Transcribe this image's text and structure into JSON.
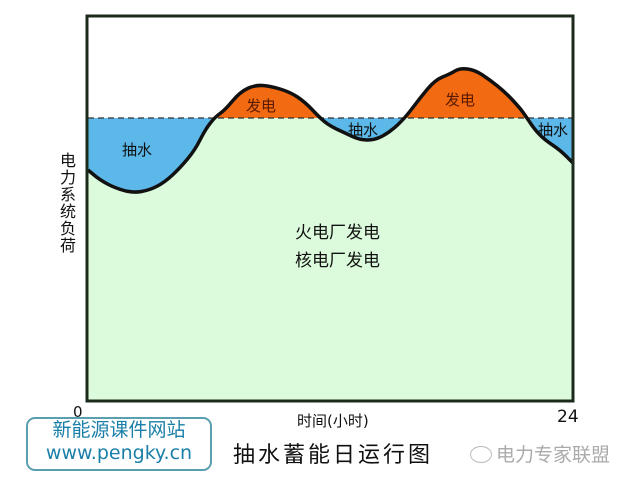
{
  "diagram": {
    "title": "抽水蓄能日运行图",
    "y_axis_label": "电力系统负荷",
    "x_axis_label": "时间(小时)",
    "x_start": "0",
    "x_end": "24",
    "regions": {
      "pump_left": "抽水",
      "pump_mid": "抽水",
      "pump_right": "抽水",
      "gen_1": "发电",
      "gen_2": "发电",
      "base_line1": "火电厂发电",
      "base_line2": "核电厂发电"
    },
    "colors": {
      "pumping": "#5bb8e8",
      "generation": "#f26a12",
      "base": "#dcfadc",
      "curve": "#111111"
    }
  },
  "logo": {
    "line1": "新能源课件网站",
    "line2": "www.pengky.cn"
  },
  "watermark": {
    "icon": "wechat-icon",
    "text": "电力专家联盟"
  }
}
